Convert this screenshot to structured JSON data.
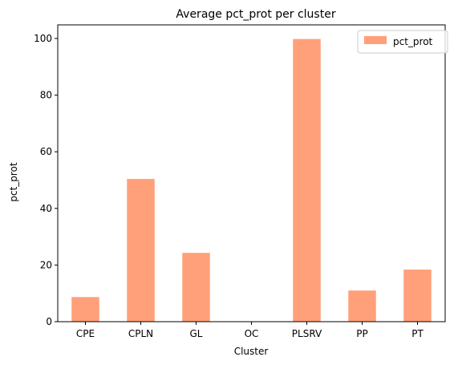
{
  "chart_data": {
    "type": "bar",
    "title": "Average pct_prot per cluster",
    "xlabel": "Cluster",
    "ylabel": "pct_prot",
    "categories": [
      "CPE",
      "CPLN",
      "GL",
      "OC",
      "PLSRV",
      "PP",
      "PT"
    ],
    "series": [
      {
        "name": "pct_prot",
        "values": [
          8.7,
          50.4,
          24.3,
          0,
          99.8,
          11.0,
          18.4
        ],
        "color": "#FFA07A"
      }
    ],
    "ylim": [
      0,
      104.8
    ],
    "yticks": [
      0,
      20,
      40,
      60,
      80,
      100
    ],
    "grid": false,
    "legend_position": "top-right"
  }
}
